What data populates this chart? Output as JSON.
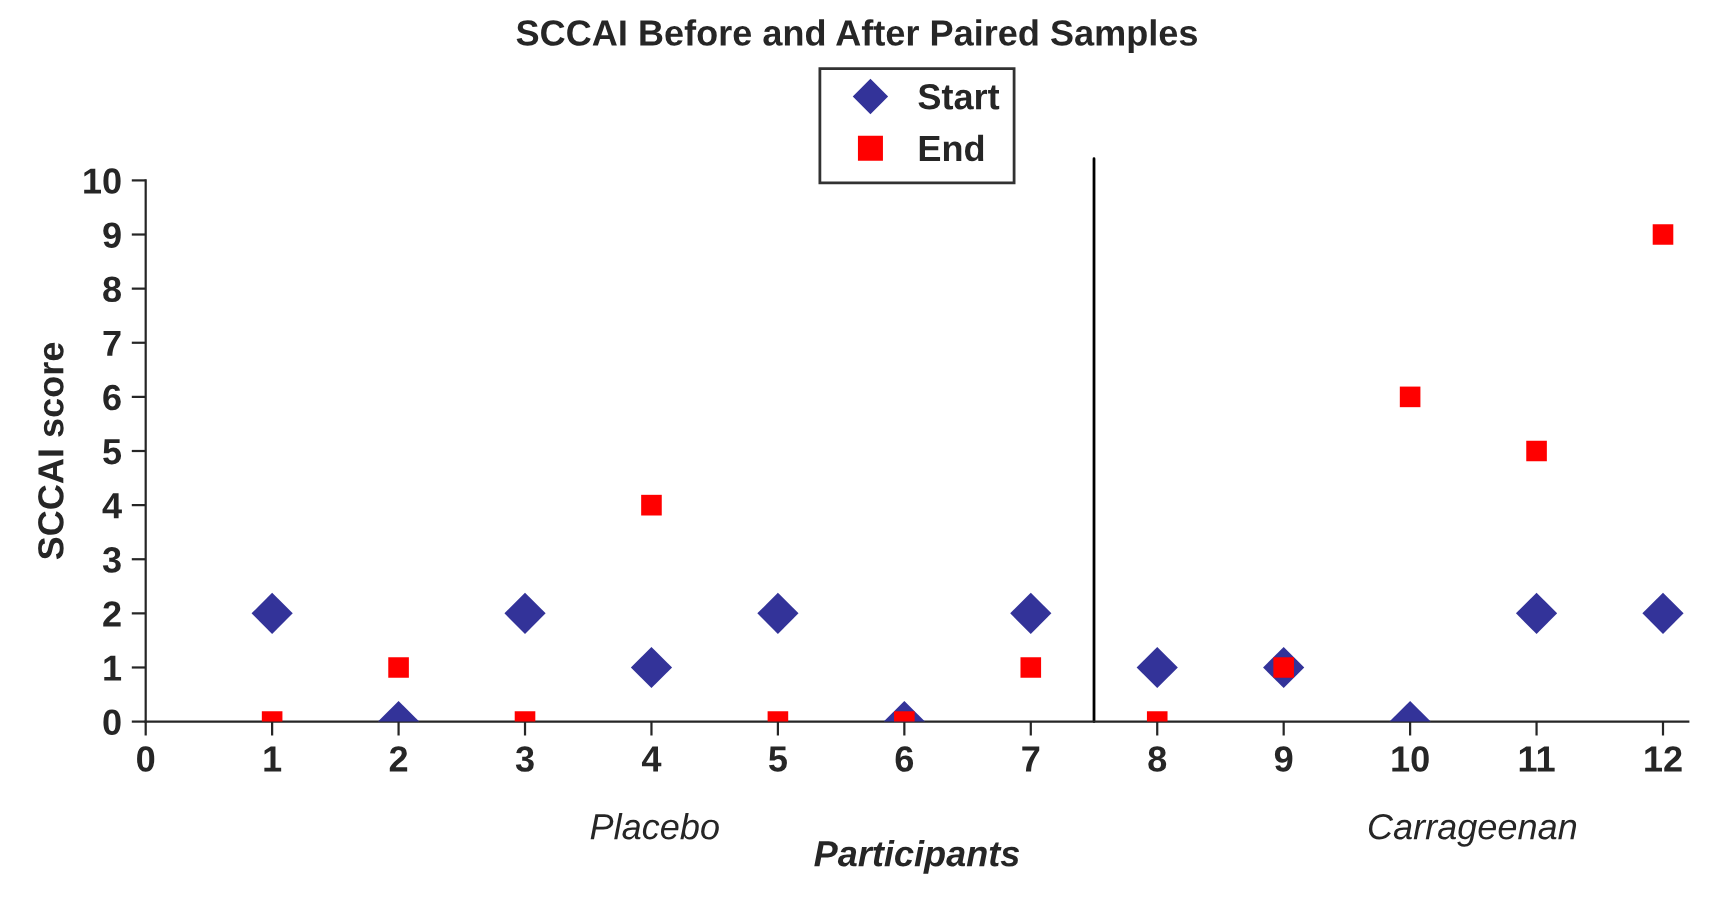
{
  "chart_data": {
    "type": "scatter",
    "title": "SCCAI Before and After Paired Samples",
    "xlabel": "Participants",
    "ylabel": "SCCAI score",
    "x": [
      1,
      2,
      3,
      4,
      5,
      6,
      7,
      8,
      9,
      10,
      11,
      12
    ],
    "series": [
      {
        "name": "Start",
        "color": "#333399",
        "marker": "diamond",
        "values": [
          2,
          0,
          2,
          1,
          2,
          0,
          2,
          1,
          1,
          0,
          2,
          2
        ]
      },
      {
        "name": "End",
        "color": "#ff0000",
        "marker": "square",
        "values": [
          0,
          1,
          0,
          4,
          0,
          0,
          1,
          0,
          1,
          6,
          5,
          9
        ]
      }
    ],
    "xlim": [
      0,
      12.2
    ],
    "xticks": [
      0,
      1,
      2,
      3,
      4,
      5,
      6,
      7,
      8,
      9,
      10,
      11,
      12
    ],
    "ylim": [
      0,
      10
    ],
    "yticks": [
      0,
      1,
      2,
      3,
      4,
      5,
      6,
      7,
      8,
      9,
      10
    ],
    "ref_lines": [
      {
        "axis": "x",
        "value": 7.5,
        "color": "#000000"
      }
    ],
    "annotations": [
      "Placebo",
      "Carrageenan"
    ],
    "grid": false,
    "legend": "top"
  }
}
